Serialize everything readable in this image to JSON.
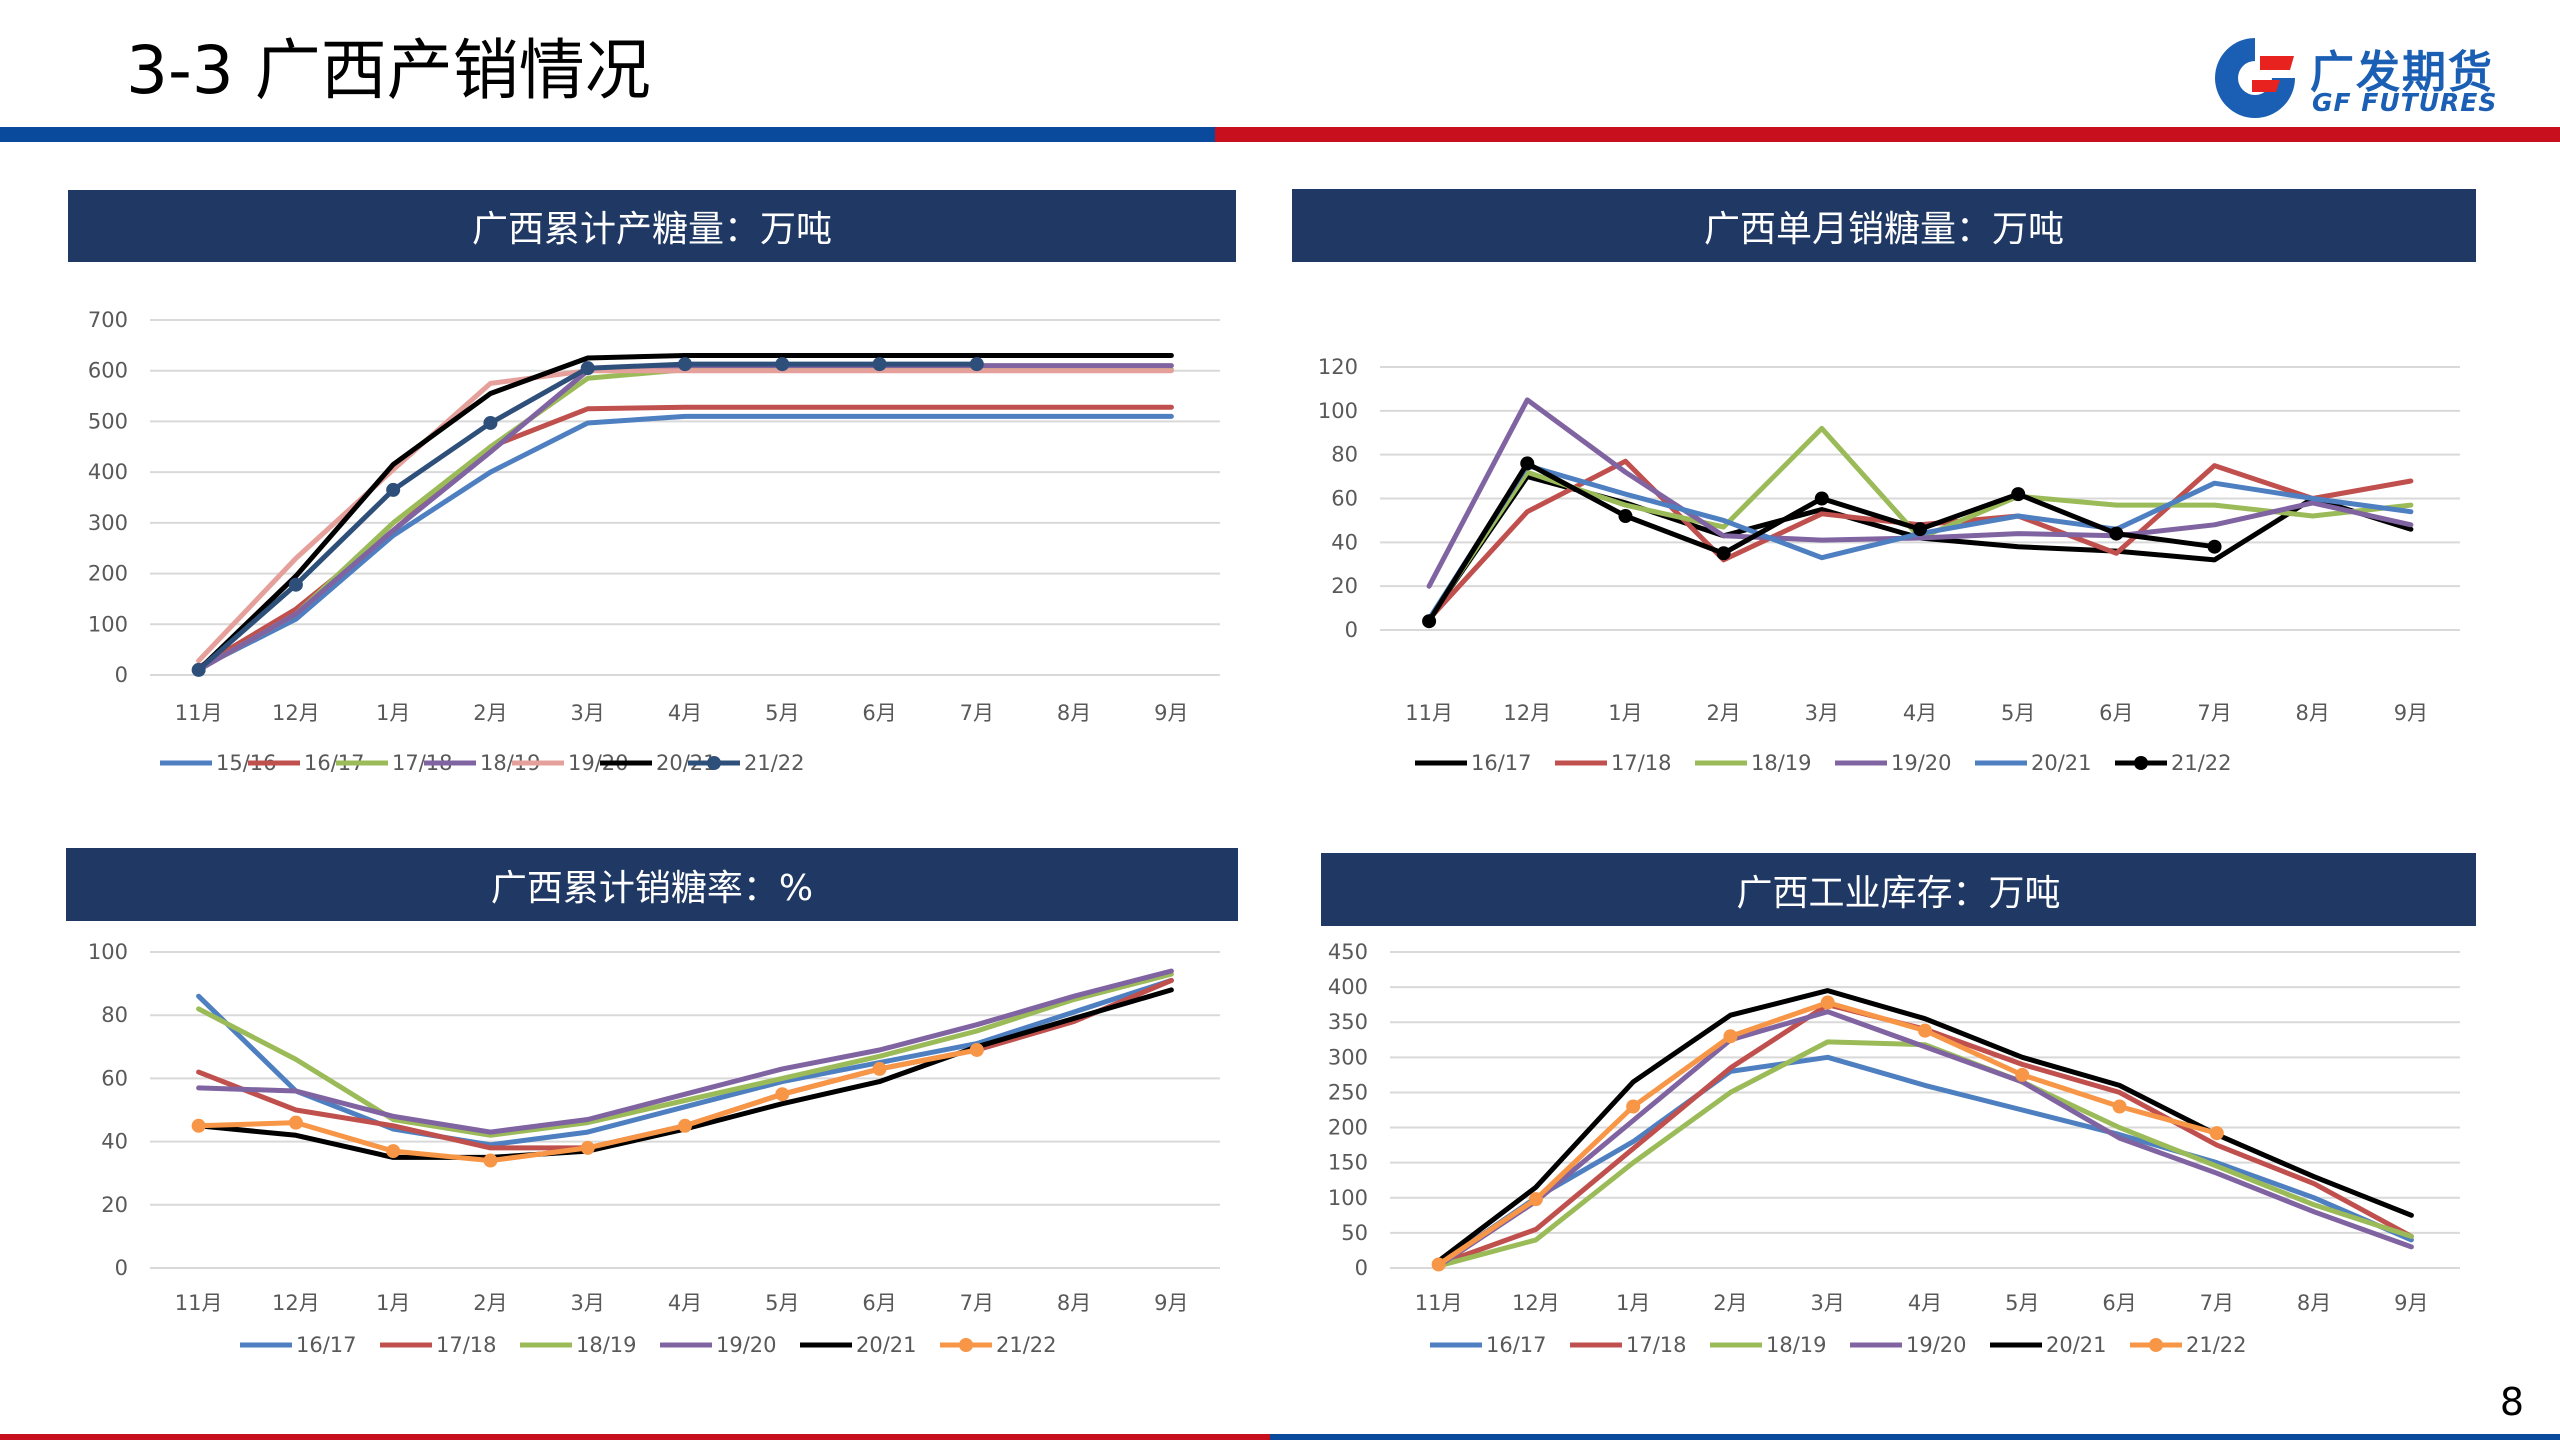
{
  "page": {
    "title": "3-3 广西产销情况",
    "page_number": "8"
  },
  "logo": {
    "cn": "广发期货",
    "en": "GF FUTURES",
    "icon": "gf-logo-icon"
  },
  "colors": {
    "blue_bar": "#0a4a9c",
    "red_bar": "#c80f1e",
    "header_bg": "#1f3864"
  },
  "panels": [
    {
      "title": "广西累计产糖量：万吨"
    },
    {
      "title": "广西单月销糖量：万吨"
    },
    {
      "title": "广西累计销糖率：%"
    },
    {
      "title": "广西工业库存：万吨"
    }
  ],
  "chart_data": [
    {
      "type": "line",
      "categories": [
        "11月",
        "12月",
        "1月",
        "2月",
        "3月",
        "4月",
        "5月",
        "6月",
        "7月",
        "8月",
        "9月"
      ],
      "yticks": [
        "0",
        "100",
        "200",
        "300",
        "400",
        "500",
        "600",
        "700"
      ],
      "ylim": [
        0,
        700
      ],
      "grid": true,
      "legend": "bottom",
      "series": [
        {
          "name": "15/16",
          "color": "#4e7fc0",
          "values": [
            13,
            110,
            275,
            400,
            497,
            510,
            510,
            510,
            510,
            510,
            510
          ]
        },
        {
          "name": "16/17",
          "color": "#c0504d",
          "values": [
            15,
            130,
            285,
            450,
            525,
            528,
            528,
            528,
            528,
            528,
            528
          ]
        },
        {
          "name": "17/18",
          "color": "#9bbb59",
          "values": [
            10,
            120,
            300,
            450,
            585,
            602,
            602,
            602,
            602,
            602,
            602
          ]
        },
        {
          "name": "18/19",
          "color": "#8064a2",
          "values": [
            10,
            120,
            285,
            440,
            600,
            610,
            610,
            610,
            610,
            610,
            610
          ]
        },
        {
          "name": "19/20",
          "color": "#e6a09b",
          "values": [
            28,
            230,
            405,
            575,
            600,
            600,
            600,
            600,
            600,
            600,
            600
          ]
        },
        {
          "name": "20/21",
          "color": "#000000",
          "values": [
            10,
            195,
            415,
            555,
            625,
            630,
            630,
            630,
            630,
            630,
            630
          ]
        },
        {
          "name": "21/22",
          "color": "#2e4f7a",
          "markers": true,
          "values": [
            10,
            178,
            365,
            497,
            605,
            613,
            613,
            613,
            613,
            null,
            null
          ]
        }
      ]
    },
    {
      "type": "line",
      "categories": [
        "11月",
        "12月",
        "1月",
        "2月",
        "3月",
        "4月",
        "5月",
        "6月",
        "7月",
        "8月",
        "9月"
      ],
      "yticks": [
        "0",
        "20",
        "40",
        "60",
        "80",
        "100",
        "120"
      ],
      "ylim": [
        0,
        120
      ],
      "grid": true,
      "legend": "bottom",
      "series": [
        {
          "name": "16/17",
          "color": "#000000",
          "values": [
            5,
            70,
            58,
            43,
            55,
            42,
            38,
            36,
            32,
            60,
            46
          ]
        },
        {
          "name": "17/18",
          "color": "#c0504d",
          "values": [
            5,
            54,
            77,
            32,
            53,
            48,
            52,
            35,
            75,
            60,
            68
          ]
        },
        {
          "name": "18/19",
          "color": "#9bbb59",
          "values": [
            5,
            72,
            57,
            47,
            92,
            42,
            61,
            57,
            57,
            52,
            57
          ]
        },
        {
          "name": "19/20",
          "color": "#8064a2",
          "values": [
            20,
            105,
            72,
            43,
            41,
            42,
            44,
            43,
            48,
            58,
            48
          ]
        },
        {
          "name": "20/21",
          "color": "#4e7fc0",
          "values": [
            5,
            75,
            62,
            50,
            33,
            44,
            52,
            46,
            67,
            60,
            54
          ]
        },
        {
          "name": "21/22",
          "color": "#000000",
          "markers": true,
          "values": [
            4,
            76,
            52,
            35,
            60,
            46,
            62,
            44,
            38,
            null,
            null
          ]
        }
      ]
    },
    {
      "type": "line",
      "categories": [
        "11月",
        "12月",
        "1月",
        "2月",
        "3月",
        "4月",
        "5月",
        "6月",
        "7月",
        "8月",
        "9月"
      ],
      "yticks": [
        "0",
        "20",
        "40",
        "60",
        "80",
        "100"
      ],
      "ylim": [
        0,
        100
      ],
      "grid": true,
      "legend": "bottom",
      "series": [
        {
          "name": "16/17",
          "color": "#4e7fc0",
          "values": [
            86,
            56,
            44,
            39,
            43,
            51,
            59,
            65,
            71,
            81,
            91
          ]
        },
        {
          "name": "17/18",
          "color": "#c0504d",
          "values": [
            62,
            50,
            45,
            38,
            38,
            45,
            55,
            63,
            69,
            78,
            91
          ]
        },
        {
          "name": "18/19",
          "color": "#9bbb59",
          "values": [
            82,
            66,
            47,
            42,
            46,
            53,
            60,
            67,
            75,
            85,
            93
          ]
        },
        {
          "name": "19/20",
          "color": "#8064a2",
          "values": [
            57,
            56,
            48,
            43,
            47,
            55,
            63,
            69,
            77,
            86,
            94
          ]
        },
        {
          "name": "20/21",
          "color": "#000000",
          "values": [
            45,
            42,
            35,
            35,
            37,
            44,
            52,
            59,
            70,
            79,
            88
          ]
        },
        {
          "name": "21/22",
          "color": "#f79646",
          "markers": true,
          "values": [
            45,
            46,
            37,
            34,
            38,
            45,
            55,
            63,
            69,
            null,
            null
          ]
        }
      ]
    },
    {
      "type": "line",
      "categories": [
        "11月",
        "12月",
        "1月",
        "2月",
        "3月",
        "4月",
        "5月",
        "6月",
        "7月",
        "8月",
        "9月"
      ],
      "yticks": [
        "0",
        "50",
        "100",
        "150",
        "200",
        "250",
        "300",
        "350",
        "400",
        "450"
      ],
      "ylim": [
        0,
        450
      ],
      "grid": true,
      "legend": "bottom",
      "series": [
        {
          "name": "16/17",
          "color": "#4e7fc0",
          "values": [
            5,
            100,
            180,
            280,
            300,
            260,
            225,
            190,
            150,
            100,
            40
          ]
        },
        {
          "name": "17/18",
          "color": "#c0504d",
          "values": [
            5,
            55,
            170,
            285,
            375,
            340,
            290,
            250,
            175,
            120,
            45
          ]
        },
        {
          "name": "18/19",
          "color": "#9bbb59",
          "values": [
            3,
            40,
            150,
            250,
            322,
            318,
            265,
            200,
            145,
            90,
            45
          ]
        },
        {
          "name": "19/20",
          "color": "#8064a2",
          "values": [
            3,
            95,
            210,
            325,
            365,
            315,
            265,
            185,
            135,
            80,
            30
          ]
        },
        {
          "name": "20/21",
          "color": "#000000",
          "values": [
            10,
            115,
            265,
            360,
            395,
            355,
            300,
            260,
            190,
            130,
            75
          ]
        },
        {
          "name": "21/22",
          "color": "#f79646",
          "markers": true,
          "values": [
            5,
            98,
            230,
            330,
            378,
            338,
            275,
            230,
            192,
            null,
            null
          ]
        }
      ]
    }
  ]
}
